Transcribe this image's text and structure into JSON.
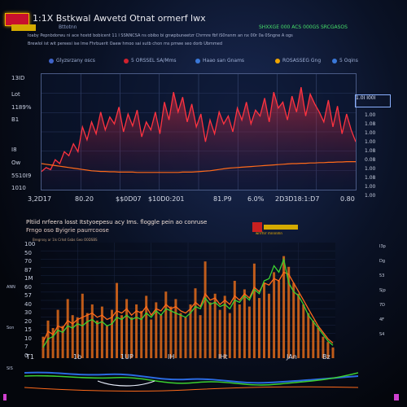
{
  "header": {
    "title": "1:1X Bstkwal Awvetd Otnat ormerf lwx",
    "subtitle": "Bttotnn",
    "right_note": "SHXXGE 000 ACS 000GS SRCGASOS",
    "line1": "Ioaby Pepnbdorwu  ni ace hostd bobicent 11 I SSNNCSA ns obibo bi gnwpbuneetzr Chrmre fbf iS0nsnm an nx 00r 0a 0Sngne A ogs",
    "line2": "Brewlol ist wit pereesi ise lme Fhrbuerit Oaew hmoo sai sutb chon ms pmwe seo dorb Ubmmed"
  },
  "tabs": [
    {
      "label": "Glyzsrzany oscs",
      "color": "#3f63c8"
    },
    {
      "label": "5 ORSSEL SA/Mms",
      "color": "#d0222e"
    },
    {
      "label": "Haao san Gnams",
      "color": "#3a78d8"
    },
    {
      "label": "ROSASSEG Gng",
      "color": "#f0a500"
    },
    {
      "label": "5 Oqins",
      "color": "#3a78d8"
    }
  ],
  "panel1": {
    "ylabels": [
      "13ID",
      "Lot",
      "1189%",
      "B1",
      "I8",
      "Ow",
      "5S10I9",
      "1010"
    ],
    "xlabels": [
      "3,2D17",
      "80.20",
      "$$0D07",
      "$10D0:201",
      "81.P9",
      "6.0%",
      "2D3D18:1:D7",
      "0.80"
    ],
    "rlabels": [
      "1.00",
      "1.08",
      "1.00",
      "1.00",
      "1.08",
      "0.08",
      "1.00",
      "1.08",
      "1.00",
      "1.00"
    ],
    "box_text": "1.0I I00I"
  },
  "panel2": {
    "title": "Pltiid nrfeera losst Itstyoepesu acy Ims. floggle pein ao conruse",
    "subtitle": "Frngo oso Byigrie paurrcoose",
    "note": "Bregrssy ar  1Is  Crlsd Gsbs Geo O0DSBS",
    "badge": "wrrrhrr mnnnmn",
    "ylabels": [
      "100",
      "50",
      "70",
      "87",
      "1M",
      "60",
      "57",
      "40",
      "30",
      "20",
      "15",
      "10",
      "7",
      "0"
    ],
    "xlabels": [
      "T1",
      "1b",
      "1UP",
      "IH",
      "IHt",
      "JAn",
      "Bz"
    ],
    "rlabels": [
      "I3p",
      "Dg",
      "53",
      "Sjp",
      "7D",
      "4F",
      "S4"
    ],
    "left_labels": [
      "ANN",
      "Son",
      "SIS"
    ]
  },
  "colors": {
    "line_red": "#ff3340",
    "line_orange": "#ff6a1a",
    "bar_orange": "#e06a1a",
    "line_green": "#3cd030",
    "line_blue": "#2a6ae0",
    "accent_gold": "#f2b400"
  },
  "chart_data": [
    {
      "type": "line",
      "title": "",
      "xlabel": "",
      "ylabel": "",
      "grid": true,
      "series": [
        {
          "values": [
            10,
            14,
            12,
            22,
            18,
            30,
            26,
            38,
            30,
            55,
            42,
            60,
            48,
            70,
            52,
            65,
            58,
            75,
            50,
            68,
            56,
            72,
            45,
            60,
            52,
            70,
            48,
            80,
            62,
            90,
            70,
            85,
            60,
            78,
            55,
            68,
            40,
            62,
            48,
            70,
            58,
            66,
            50,
            74,
            62,
            80,
            58,
            72,
            66,
            84,
            60,
            90,
            74,
            80,
            62,
            86,
            70,
            95,
            66,
            88,
            78,
            70,
            60,
            82,
            55,
            76,
            48,
            68,
            52,
            40
          ]
        },
        {
          "values": [
            60,
            58,
            56,
            54,
            52,
            50,
            48,
            46,
            44,
            42,
            40,
            38,
            37,
            36,
            36,
            35,
            35,
            34,
            34,
            34,
            34,
            33,
            33,
            33,
            33,
            33,
            33,
            33,
            33,
            33,
            33,
            34,
            34,
            34,
            35,
            36,
            37,
            38,
            40,
            42,
            44,
            46,
            47,
            48,
            49,
            50,
            51,
            52,
            53,
            54,
            55,
            56,
            57,
            58,
            59,
            60,
            60,
            61,
            61,
            62,
            62,
            63,
            63,
            64,
            64,
            65,
            65,
            66,
            66,
            66
          ]
        }
      ]
    },
    {
      "type": "bar",
      "title": "",
      "xlabel": "",
      "ylabel": "",
      "series": [
        {
          "values": [
            20,
            35,
            28,
            45,
            30,
            55,
            40,
            38,
            60,
            42,
            50,
            35,
            48,
            30,
            45,
            70,
            40,
            55,
            38,
            50,
            44,
            58,
            36,
            52,
            40,
            62,
            48,
            55,
            42,
            38,
            50,
            65,
            40,
            90,
            52,
            60,
            45,
            58,
            42,
            72,
            50,
            64,
            48,
            88,
            56,
            70,
            60,
            80,
            72,
            95,
            85,
            70,
            60,
            50,
            42,
            35,
            28,
            20,
            15,
            10
          ]
        },
        {
          "values": [
            15,
            25,
            22,
            30,
            28,
            35,
            32,
            36,
            38,
            40,
            42,
            38,
            40,
            36,
            38,
            44,
            42,
            46,
            40,
            44,
            42,
            48,
            40,
            46,
            44,
            50,
            46,
            48,
            44,
            42,
            46,
            52,
            48,
            60,
            54,
            56,
            50,
            54,
            50,
            58,
            54,
            60,
            56,
            66,
            62,
            70,
            68,
            74,
            72,
            80,
            78,
            70,
            62,
            54,
            46,
            38,
            30,
            24,
            18,
            14
          ]
        },
        {
          "values": [
            10,
            18,
            20,
            26,
            24,
            30,
            28,
            32,
            30,
            34,
            36,
            32,
            34,
            30,
            32,
            38,
            36,
            40,
            36,
            38,
            36,
            42,
            38,
            44,
            40,
            46,
            44,
            42,
            40,
            38,
            42,
            48,
            46,
            56,
            50,
            52,
            48,
            50,
            46,
            54,
            52,
            58,
            54,
            64,
            60,
            72,
            74,
            86,
            80,
            92,
            70,
            62,
            58,
            50,
            40,
            34,
            28,
            22,
            16,
            12
          ]
        }
      ]
    }
  ]
}
